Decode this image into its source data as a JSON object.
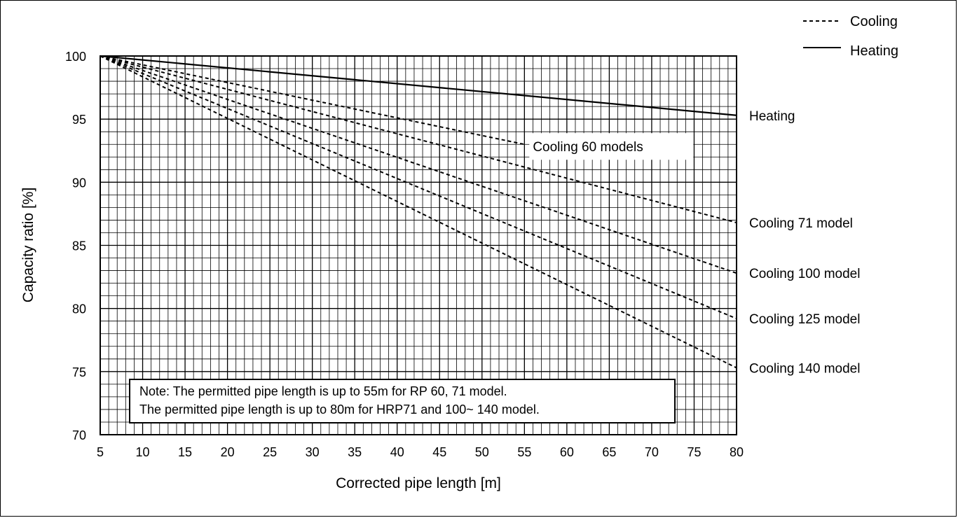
{
  "chart_data": {
    "type": "line",
    "xlabel": "Corrected pipe length [m]",
    "ylabel": "Capacity ratio [%]",
    "xlim": [
      5,
      80
    ],
    "ylim": [
      70,
      100
    ],
    "x_ticks": [
      "5",
      "10",
      "15",
      "20",
      "25",
      "30",
      "35",
      "40",
      "45",
      "50",
      "55",
      "60",
      "65",
      "70",
      "75",
      "80"
    ],
    "y_ticks": [
      "70",
      "75",
      "80",
      "85",
      "90",
      "95",
      "100"
    ],
    "minor_grid": {
      "x": 1,
      "y": 1
    },
    "grid": true,
    "legend": {
      "position": "top-right",
      "items": [
        {
          "label": "Cooling",
          "style": "dashed"
        },
        {
          "label": "Heating",
          "style": "solid"
        }
      ]
    },
    "series": [
      {
        "name": "Heating",
        "style": "solid",
        "x": [
          5,
          80
        ],
        "y": [
          100,
          95.3
        ],
        "label": "Heating"
      },
      {
        "name": "Cooling 60 models",
        "style": "dashed",
        "x": [
          5,
          55
        ],
        "y": [
          100,
          93
        ],
        "label": "Cooling 60 models"
      },
      {
        "name": "Cooling 71 model",
        "style": "dashed",
        "x": [
          5,
          80
        ],
        "y": [
          100,
          86.8
        ],
        "label": "Cooling 71 model"
      },
      {
        "name": "Cooling 100 model",
        "style": "dashed",
        "x": [
          5,
          80
        ],
        "y": [
          100,
          82.8
        ],
        "label": "Cooling 100 model"
      },
      {
        "name": "Cooling 125 model",
        "style": "dashed",
        "x": [
          5,
          80
        ],
        "y": [
          100,
          79.2
        ],
        "label": "Cooling 125 model"
      },
      {
        "name": "Cooling 140 model",
        "style": "dashed",
        "x": [
          5,
          80
        ],
        "y": [
          100,
          75.3
        ],
        "label": "Cooling 140 model"
      }
    ],
    "note": [
      "Note: The permitted pipe length is up to 55m for RP 60, 71 model.",
      "The permitted pipe length is up to 80m for  HRP71 and 100~ 140 model."
    ]
  }
}
